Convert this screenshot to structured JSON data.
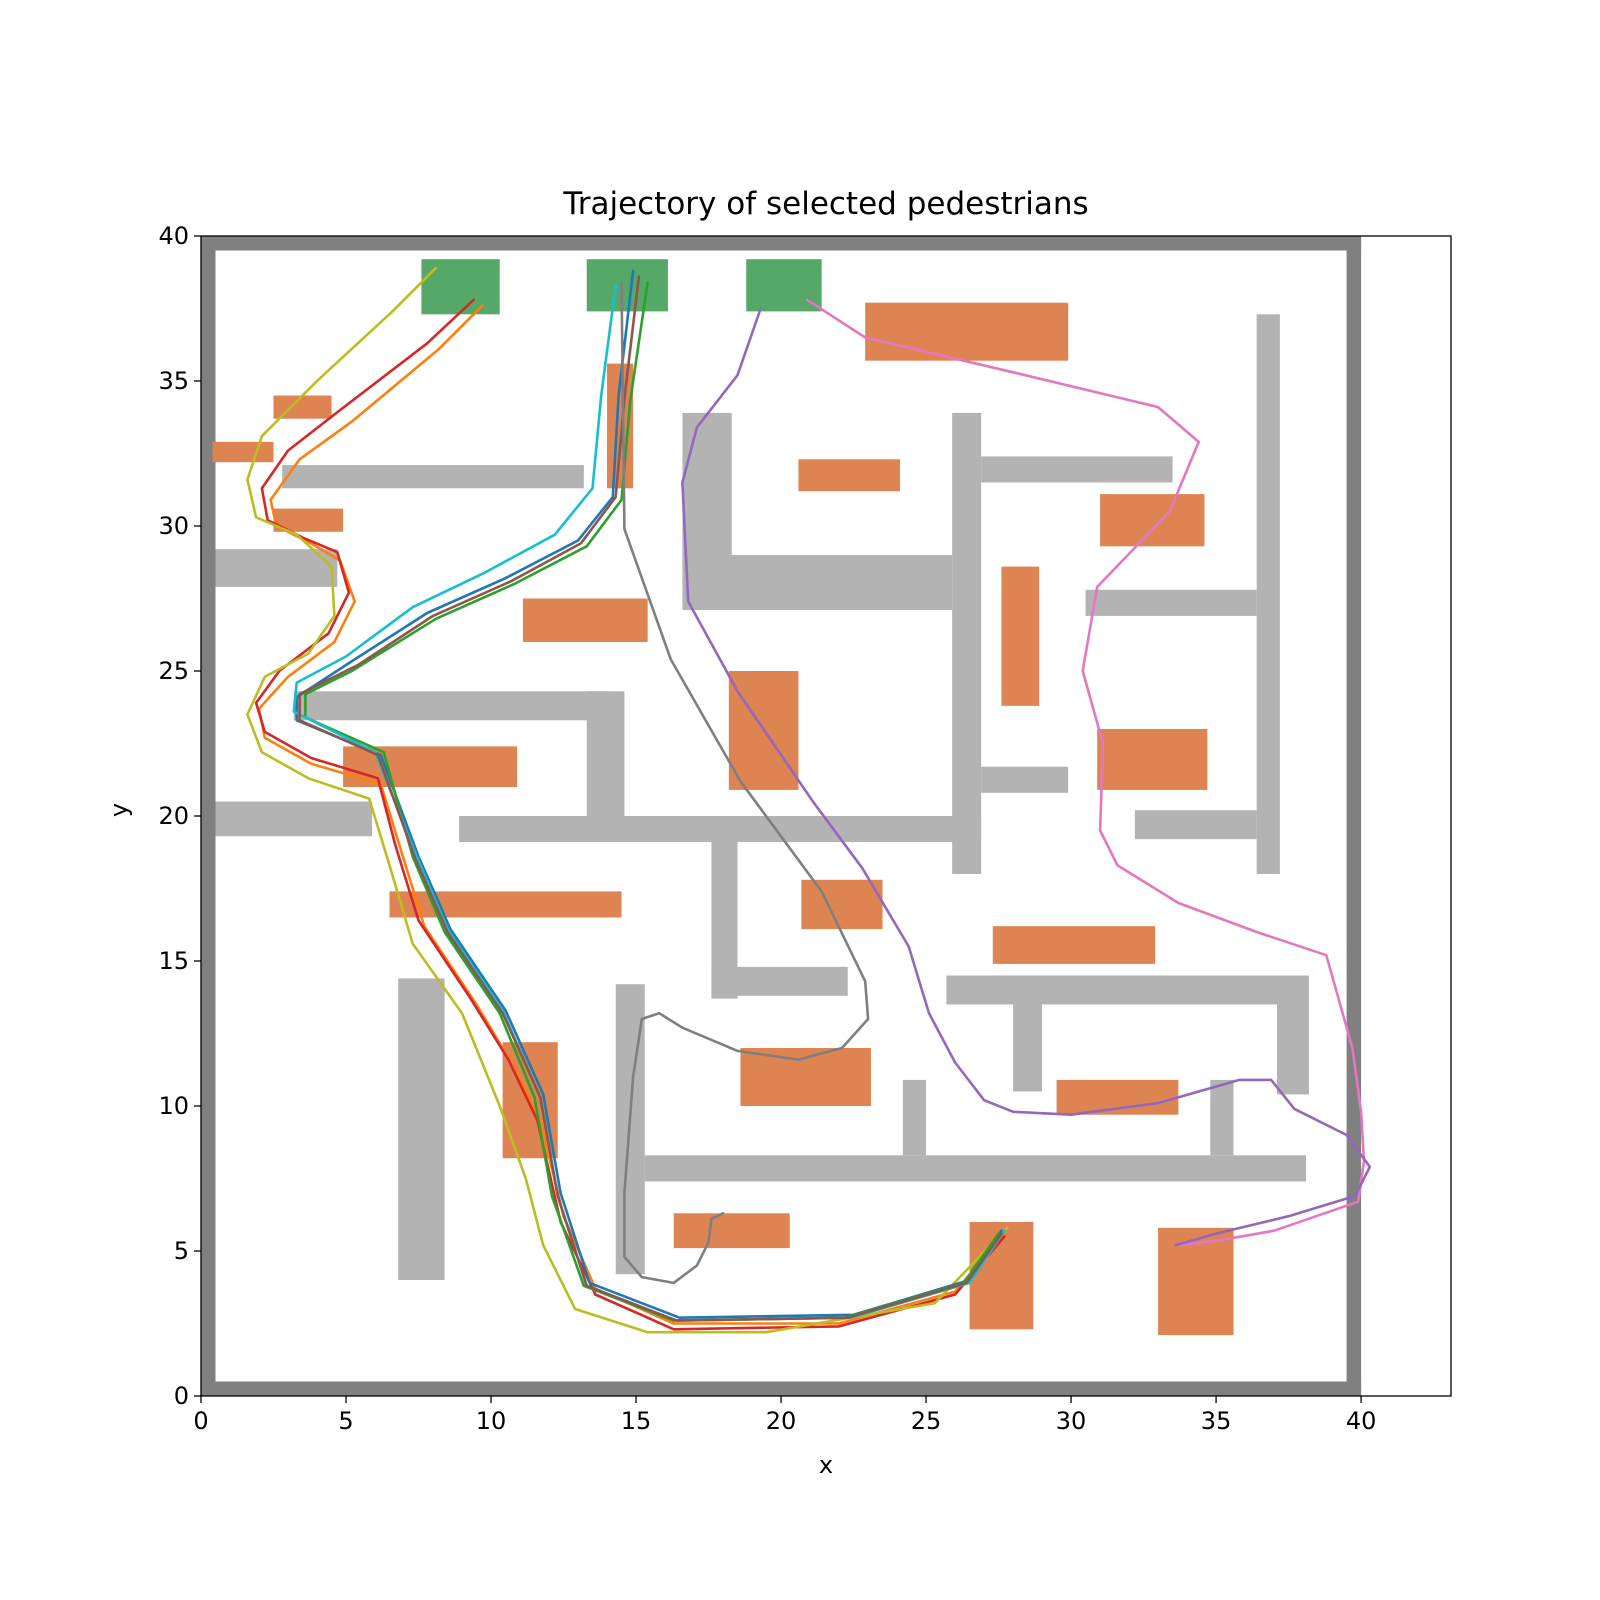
{
  "chart_data": {
    "type": "line",
    "title": "Trajectory of selected pedestrians",
    "xlabel": "x",
    "ylabel": "y",
    "xlim": [
      0,
      43.1
    ],
    "ylim": [
      0,
      40
    ],
    "xticks": [
      0,
      5,
      10,
      15,
      20,
      25,
      30,
      35,
      40
    ],
    "yticks": [
      0,
      5,
      10,
      15,
      20,
      25,
      30,
      35,
      40
    ],
    "grid": false,
    "colors": {
      "outer_wall": "#808080",
      "wall": "#b3b3b3",
      "obstacle": "#dd8452",
      "target": "#55a868"
    },
    "outer_walls": [
      [
        0,
        0,
        0.5,
        40
      ],
      [
        39.5,
        0,
        0.5,
        40
      ],
      [
        0,
        39.5,
        40,
        0.5
      ],
      [
        0,
        0,
        40,
        0.5
      ]
    ],
    "walls": [
      [
        2.8,
        31.3,
        10.4,
        0.8
      ],
      [
        0.5,
        27.9,
        4.2,
        1.3
      ],
      [
        0.5,
        19.3,
        5.4,
        1.2
      ],
      [
        3.2,
        23.3,
        10.9,
        1.0
      ],
      [
        13.3,
        20.0,
        1.3,
        4.3
      ],
      [
        8.9,
        19.1,
        18.0,
        0.9
      ],
      [
        17.6,
        13.7,
        0.9,
        5.5
      ],
      [
        17.6,
        13.8,
        4.7,
        1.0
      ],
      [
        16.6,
        28.0,
        1.7,
        5.9
      ],
      [
        16.6,
        27.1,
        9.3,
        1.9
      ],
      [
        25.9,
        18.0,
        1.0,
        15.9
      ],
      [
        26.9,
        31.5,
        6.6,
        0.9
      ],
      [
        30.5,
        26.9,
        5.9,
        0.9
      ],
      [
        26.9,
        20.8,
        3.0,
        0.9
      ],
      [
        32.2,
        19.2,
        4.2,
        1.0
      ],
      [
        36.4,
        18.0,
        0.8,
        19.3
      ],
      [
        6.8,
        4.0,
        1.6,
        10.4
      ],
      [
        14.3,
        4.2,
        1.0,
        10.0
      ],
      [
        15.3,
        7.4,
        22.8,
        0.9
      ],
      [
        24.2,
        8.3,
        0.8,
        2.6
      ],
      [
        34.8,
        8.3,
        0.8,
        2.6
      ],
      [
        25.7,
        13.5,
        12.5,
        1.0
      ],
      [
        28.0,
        10.5,
        1.0,
        3.0
      ],
      [
        37.1,
        10.4,
        1.1,
        3.1
      ]
    ],
    "obstacles": [
      [
        2.5,
        33.7,
        2.0,
        0.8
      ],
      [
        0.4,
        32.2,
        2.1,
        0.7
      ],
      [
        2.5,
        29.8,
        2.4,
        0.8
      ],
      [
        14.0,
        31.3,
        0.9,
        4.3
      ],
      [
        22.9,
        35.7,
        7.0,
        2.0
      ],
      [
        20.6,
        31.2,
        3.5,
        1.1
      ],
      [
        31.0,
        29.3,
        3.6,
        1.8
      ],
      [
        27.6,
        23.8,
        1.3,
        4.8
      ],
      [
        11.1,
        26.0,
        4.3,
        1.5
      ],
      [
        18.2,
        20.9,
        2.4,
        4.1
      ],
      [
        30.9,
        20.9,
        3.8,
        2.1
      ],
      [
        4.9,
        21.0,
        6.0,
        1.4
      ],
      [
        6.5,
        16.5,
        8.0,
        0.9
      ],
      [
        20.7,
        16.1,
        2.8,
        1.7
      ],
      [
        27.3,
        14.9,
        5.6,
        1.3
      ],
      [
        18.6,
        10.0,
        4.5,
        2.0
      ],
      [
        10.4,
        8.2,
        1.9,
        4.0
      ],
      [
        29.5,
        9.7,
        4.2,
        1.2
      ],
      [
        16.3,
        5.1,
        4.0,
        1.2
      ],
      [
        26.5,
        2.3,
        2.2,
        3.7
      ],
      [
        33.0,
        2.1,
        2.6,
        3.7
      ]
    ],
    "targets": [
      [
        7.6,
        37.3,
        2.7,
        1.9
      ],
      [
        13.3,
        37.4,
        2.8,
        1.8
      ],
      [
        18.8,
        37.4,
        2.6,
        1.8
      ]
    ],
    "series": [
      {
        "color": "#ff7f0e",
        "x": [
          9.7,
          8.2,
          5.2,
          3.4,
          2.4,
          2.6,
          3.8,
          4.8,
          5.3,
          4.6,
          3.0,
          2.0,
          2.2,
          3.8,
          6.2,
          6.9,
          7.7,
          9.5,
          10.7,
          11.7,
          12.5,
          13.6,
          16.3,
          22.0,
          26.0,
          27.7
        ],
        "y": [
          37.6,
          36.1,
          33.6,
          32.3,
          30.9,
          30.0,
          29.4,
          28.8,
          27.4,
          26.0,
          24.8,
          23.7,
          22.7,
          21.8,
          21.1,
          18.8,
          16.2,
          13.5,
          11.5,
          9.5,
          6.2,
          3.7,
          2.5,
          2.5,
          3.6,
          5.6
        ]
      },
      {
        "color": "#d62728",
        "x": [
          9.4,
          7.8,
          4.8,
          3.0,
          2.1,
          2.3,
          3.5,
          4.7,
          5.1,
          4.4,
          2.7,
          1.9,
          2.2,
          3.8,
          6.1,
          6.7,
          7.5,
          9.3,
          10.6,
          11.6,
          12.4,
          13.6,
          16.3,
          22.0,
          26.0,
          27.7
        ],
        "y": [
          37.8,
          36.3,
          34.0,
          32.6,
          31.3,
          30.2,
          29.6,
          29.1,
          27.7,
          26.3,
          25.0,
          23.9,
          22.9,
          22.0,
          21.3,
          19.0,
          16.4,
          13.7,
          11.6,
          9.5,
          6.0,
          3.5,
          2.3,
          2.4,
          3.5,
          5.5
        ]
      },
      {
        "color": "#bcbd22",
        "x": [
          8.1,
          6.6,
          4.0,
          2.1,
          1.6,
          1.9,
          3.3,
          4.5,
          4.6,
          3.7,
          2.2,
          1.6,
          2.1,
          3.7,
          5.8,
          6.5,
          7.3,
          9.0,
          10.3,
          11.2,
          11.8,
          12.9,
          15.4,
          19.5,
          25.3,
          27.8
        ],
        "y": [
          38.9,
          37.4,
          35.0,
          33.1,
          31.6,
          30.3,
          29.7,
          28.6,
          26.9,
          25.6,
          24.8,
          23.5,
          22.2,
          21.3,
          20.6,
          18.3,
          15.6,
          13.2,
          10.0,
          7.5,
          5.2,
          3.0,
          2.2,
          2.2,
          3.2,
          5.8
        ]
      },
      {
        "color": "#1f77b4",
        "x": [
          14.9,
          14.4,
          14.2,
          13.0,
          10.5,
          7.8,
          5.3,
          3.3,
          3.3,
          6.2,
          7.5,
          8.6,
          10.5,
          11.8,
          12.4,
          13.4,
          16.5,
          22.5,
          26.5,
          27.6
        ],
        "y": [
          38.8,
          34.5,
          31.0,
          29.5,
          28.2,
          27.0,
          25.4,
          24.1,
          23.3,
          22.1,
          18.6,
          16.1,
          13.3,
          10.4,
          7.0,
          3.9,
          2.7,
          2.8,
          4.0,
          5.7
        ]
      },
      {
        "color": "#2ca02c",
        "x": [
          15.4,
          14.8,
          14.5,
          13.3,
          10.8,
          8.1,
          5.2,
          3.6,
          3.6,
          6.3,
          7.3,
          8.4,
          10.3,
          11.5,
          12.1,
          13.2,
          16.3,
          22.2,
          26.3,
          27.5
        ],
        "y": [
          38.4,
          34.3,
          30.9,
          29.3,
          28.0,
          26.8,
          25.0,
          24.2,
          23.4,
          22.2,
          18.6,
          16.0,
          13.2,
          10.3,
          6.9,
          3.8,
          2.6,
          2.7,
          3.9,
          5.6
        ]
      },
      {
        "color": "#17becf",
        "x": [
          14.3,
          13.8,
          13.5,
          12.2,
          9.8,
          7.3,
          5.0,
          3.3,
          3.2,
          6.0,
          7.4,
          8.5,
          10.4,
          11.7,
          12.3,
          13.3,
          16.4,
          22.4,
          26.5,
          27.7
        ],
        "y": [
          38.3,
          34.5,
          31.3,
          29.7,
          28.4,
          27.2,
          25.5,
          24.6,
          23.6,
          22.2,
          18.7,
          16.1,
          13.3,
          10.3,
          6.9,
          3.8,
          2.6,
          2.7,
          3.9,
          5.7
        ]
      },
      {
        "color": "#8c564b",
        "x": [
          15.1,
          14.6,
          14.3,
          13.1,
          10.7,
          8.0,
          5.4,
          3.4,
          3.4,
          6.1,
          7.4,
          8.5,
          10.4,
          11.7,
          12.3,
          13.3,
          16.4,
          22.3,
          26.4,
          27.6
        ],
        "y": [
          38.6,
          34.4,
          31.0,
          29.4,
          28.1,
          26.9,
          25.2,
          24.2,
          23.3,
          22.1,
          18.5,
          16.0,
          13.2,
          10.3,
          6.9,
          3.8,
          2.6,
          2.7,
          3.9,
          5.6
        ]
      },
      {
        "color": "#e377c2",
        "x": [
          20.9,
          22.9,
          28.0,
          33.0,
          34.4,
          33.4,
          30.9,
          30.4,
          31.1,
          31.0,
          31.6,
          33.7,
          36.4,
          38.8,
          39.7,
          40.0,
          40.1,
          39.9,
          37.0,
          35.3,
          33.8
        ],
        "y": [
          37.8,
          36.5,
          35.3,
          34.1,
          32.9,
          30.5,
          27.9,
          25.0,
          22.5,
          19.5,
          18.3,
          17.0,
          16.0,
          15.2,
          12.0,
          9.8,
          8.1,
          6.7,
          5.7,
          5.4,
          5.2
        ]
      },
      {
        "color": "#9467bd",
        "x": [
          19.3,
          18.5,
          17.1,
          16.6,
          16.8,
          18.5,
          21.1,
          22.8,
          24.4,
          25.1,
          26.0,
          27.0,
          28.0,
          30.0,
          33.0,
          35.8,
          36.9,
          37.7,
          39.5,
          40.3,
          39.8,
          37.5,
          35.0,
          33.6
        ],
        "y": [
          37.5,
          35.2,
          33.4,
          31.5,
          27.4,
          24.3,
          20.5,
          18.2,
          15.5,
          13.2,
          11.5,
          10.2,
          9.8,
          9.7,
          10.1,
          10.9,
          10.9,
          9.9,
          9.0,
          7.9,
          6.9,
          6.2,
          5.6,
          5.2
        ]
      },
      {
        "color": "#7f7f7f",
        "x": [
          14.5,
          14.6,
          16.2,
          18.6,
          21.4,
          22.9,
          23.0,
          22.1,
          20.6,
          18.5,
          16.6,
          15.8,
          15.2,
          14.9,
          14.6,
          14.6,
          15.2,
          16.3,
          17.1,
          17.5,
          17.6,
          18.0
        ],
        "y": [
          38.4,
          29.9,
          25.4,
          21.2,
          17.4,
          14.3,
          13.0,
          12.0,
          11.6,
          11.9,
          12.7,
          13.2,
          13.0,
          11.0,
          7.0,
          4.8,
          4.1,
          3.9,
          4.5,
          5.3,
          6.1,
          6.3
        ]
      }
    ]
  }
}
